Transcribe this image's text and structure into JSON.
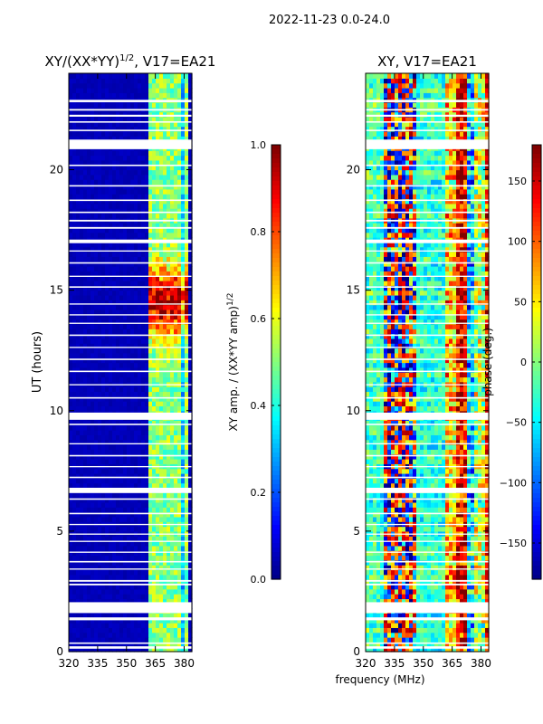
{
  "figure": {
    "suptitle": "2022-11-23 0.0-24.0",
    "shared_xlabel": "frequency (MHz)"
  },
  "chart_data": [
    {
      "type": "heatmap",
      "title_main": "XY/(XX*YY)",
      "title_exp": "1/2",
      "title_suffix": ", V17=EA21",
      "xlabel": "",
      "ylabel": "UT (hours)",
      "xlim": [
        320,
        384
      ],
      "ylim": [
        0,
        24
      ],
      "xticks": [
        320,
        335,
        350,
        365,
        380
      ],
      "yticks": [
        0,
        5,
        10,
        15,
        20
      ],
      "value_range": [
        0.0,
        1.0
      ],
      "colorbar": {
        "label_main": "XY amp. / (XX*YY amp)",
        "label_exp": "1/2",
        "ticks": [
          0.0,
          0.2,
          0.4,
          0.6,
          0.8,
          1.0
        ],
        "tick_labels": [
          "0.0",
          "0.2",
          "0.4",
          "0.6",
          "0.8",
          "1.0"
        ],
        "range": [
          0.0,
          1.0
        ]
      },
      "description": "Mostly near 0 below 361 MHz; elevated values (0.3-0.9) in 361-381 MHz, peaking near 14-15 UT"
    },
    {
      "type": "heatmap",
      "title_main": "XY, V17=EA21",
      "xlabel": "frequency (MHz)",
      "ylabel": "",
      "xlim": [
        320,
        384
      ],
      "ylim": [
        0,
        24
      ],
      "xticks": [
        320,
        335,
        350,
        365,
        380
      ],
      "yticks": [
        0,
        5,
        10,
        15,
        20
      ],
      "value_range": [
        -180,
        180
      ],
      "colorbar": {
        "label_main": "phase (deg.)",
        "ticks": [
          -150,
          -100,
          -50,
          0,
          50,
          100,
          150
        ],
        "tick_labels": [
          "−150",
          "−100",
          "−50",
          "0",
          "50",
          "100",
          "150"
        ],
        "range": [
          -180,
          180
        ]
      },
      "description": "Noisy XY phase, strong structure around 330-345 MHz and banded structure above 361 MHz"
    }
  ],
  "flagged_ut_gaps": [
    [
      0.12,
      0.22
    ],
    [
      0.32,
      0.38
    ],
    [
      1.3,
      1.42
    ],
    [
      1.6,
      2.05
    ],
    [
      2.75,
      2.82
    ],
    [
      2.9,
      2.97
    ],
    [
      3.4,
      3.45
    ],
    [
      3.7,
      3.76
    ],
    [
      4.1,
      4.15
    ],
    [
      4.55,
      4.6
    ],
    [
      4.85,
      4.9
    ],
    [
      5.25,
      5.3
    ],
    [
      5.7,
      5.76
    ],
    [
      6.3,
      6.36
    ],
    [
      6.58,
      6.8
    ],
    [
      7.2,
      7.26
    ],
    [
      7.65,
      7.7
    ],
    [
      8.1,
      8.16
    ],
    [
      8.6,
      8.65
    ],
    [
      9.4,
      9.46
    ],
    [
      9.62,
      9.92
    ],
    [
      10.5,
      10.56
    ],
    [
      11.05,
      11.1
    ],
    [
      11.6,
      11.66
    ],
    [
      12.1,
      12.16
    ],
    [
      12.6,
      12.65
    ],
    [
      13.1,
      13.16
    ],
    [
      13.6,
      13.65
    ],
    [
      13.95,
      14.0
    ],
    [
      14.4,
      14.45
    ],
    [
      15.1,
      15.16
    ],
    [
      15.55,
      15.6
    ],
    [
      16.1,
      16.16
    ],
    [
      16.6,
      16.65
    ],
    [
      16.95,
      17.1
    ],
    [
      17.55,
      17.62
    ],
    [
      17.85,
      17.92
    ],
    [
      18.2,
      18.26
    ],
    [
      18.7,
      18.76
    ],
    [
      19.3,
      19.36
    ],
    [
      20.15,
      20.21
    ],
    [
      20.85,
      21.25
    ],
    [
      21.6,
      21.66
    ],
    [
      21.95,
      22.01
    ],
    [
      22.2,
      22.28
    ],
    [
      22.45,
      22.52
    ],
    [
      22.8,
      22.9
    ]
  ]
}
